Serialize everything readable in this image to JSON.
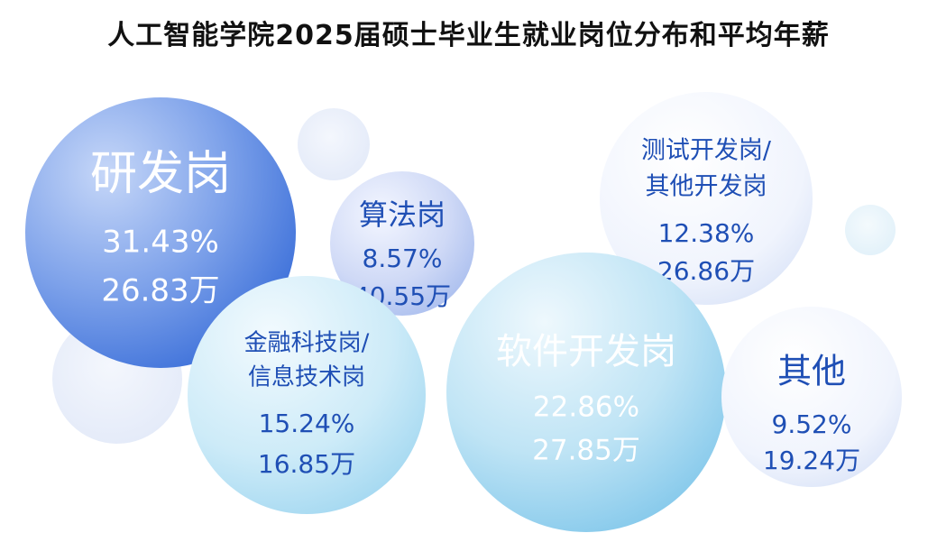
{
  "chart_data": {
    "type": "bubble",
    "title": "人工智能学院2025届硕士毕业生就业岗位分布和平均年薪",
    "items": [
      {
        "name_lines": [
          "研发岗"
        ],
        "share_label": "31.43%",
        "salary_label": "26.83万",
        "share": 31.43,
        "salary_wan": 26.83
      },
      {
        "name_lines": [
          "算法岗"
        ],
        "share_label": "8.57%",
        "salary_label": "40.55万",
        "share": 8.57,
        "salary_wan": 40.55
      },
      {
        "name_lines": [
          "测试开发岗/",
          "其他开发岗"
        ],
        "share_label": "12.38%",
        "salary_label": "26.86万",
        "share": 12.38,
        "salary_wan": 26.86
      },
      {
        "name_lines": [
          "金融科技岗/",
          "信息技术岗"
        ],
        "share_label": "15.24%",
        "salary_label": "16.85万",
        "share": 15.24,
        "salary_wan": 16.85
      },
      {
        "name_lines": [
          "软件开发岗"
        ],
        "share_label": "22.86%",
        "salary_label": "27.85万",
        "share": 22.86,
        "salary_wan": 27.85
      },
      {
        "name_lines": [
          "其他"
        ],
        "share_label": "9.52%",
        "salary_label": "19.24万",
        "share": 9.52,
        "salary_wan": 19.24
      }
    ]
  }
}
